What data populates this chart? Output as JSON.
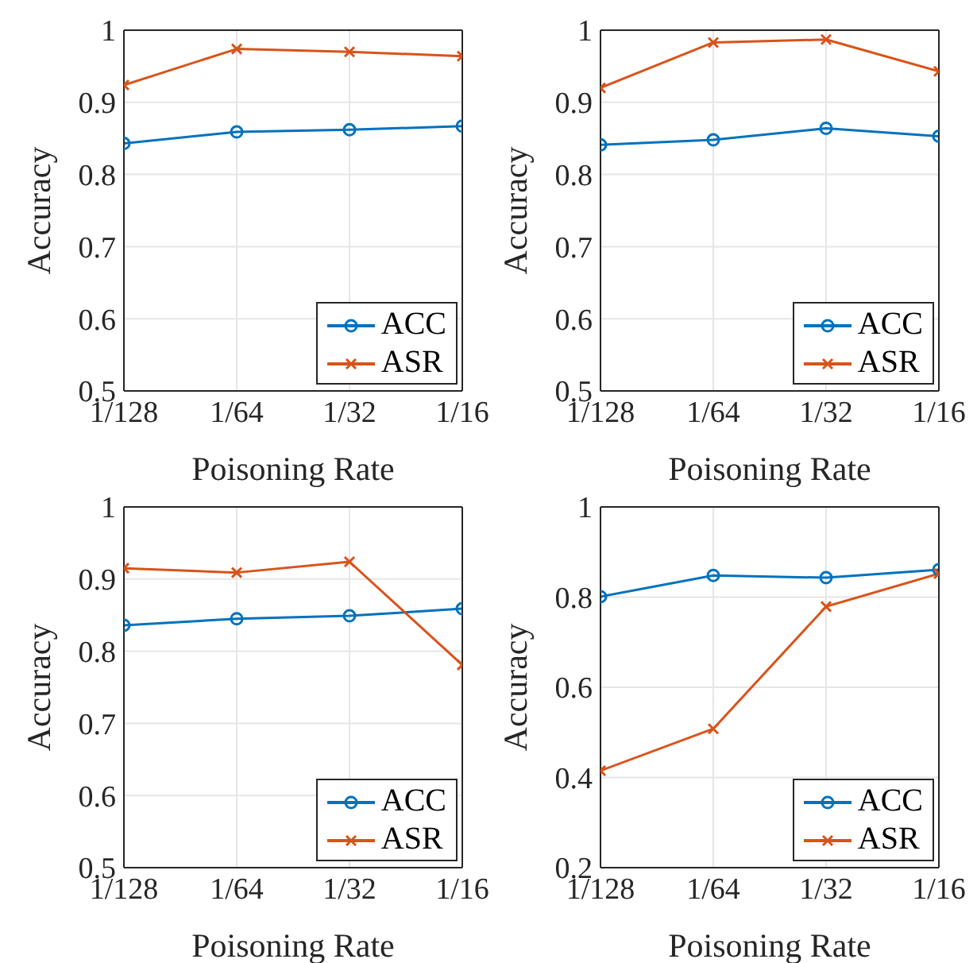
{
  "chart_data": [
    {
      "type": "line",
      "xlabel": "Poisoning Rate",
      "ylabel": "Accuracy",
      "categories": [
        "1/128",
        "1/64",
        "1/32",
        "1/16"
      ],
      "ylim": [
        0.5,
        1
      ],
      "yticks": [
        0.5,
        0.6,
        0.7,
        0.8,
        0.9,
        1
      ],
      "grid": true,
      "legend": "bottom right",
      "line_style": "solid",
      "series": [
        {
          "name": "ACC",
          "color": "#0072bd",
          "marker": "circle",
          "values": [
            0.843,
            0.859,
            0.862,
            0.867
          ]
        },
        {
          "name": "ASR",
          "color": "#d95319",
          "marker": "cross",
          "values": [
            0.924,
            0.974,
            0.97,
            0.964
          ]
        }
      ]
    },
    {
      "type": "line",
      "xlabel": "Poisoning Rate",
      "ylabel": "Accuracy",
      "categories": [
        "1/128",
        "1/64",
        "1/32",
        "1/16"
      ],
      "ylim": [
        0.5,
        1
      ],
      "yticks": [
        0.5,
        0.6,
        0.7,
        0.8,
        0.9,
        1
      ],
      "grid": true,
      "legend": "bottom right",
      "line_style": "solid",
      "series": [
        {
          "name": "ACC",
          "color": "#0072bd",
          "marker": "circle",
          "values": [
            0.841,
            0.848,
            0.864,
            0.853
          ]
        },
        {
          "name": "ASR",
          "color": "#d95319",
          "marker": "cross",
          "values": [
            0.92,
            0.983,
            0.987,
            0.943
          ]
        }
      ]
    },
    {
      "type": "line",
      "xlabel": "Poisoning Rate",
      "ylabel": "Accuracy",
      "categories": [
        "1/128",
        "1/64",
        "1/32",
        "1/16"
      ],
      "ylim": [
        0.5,
        1
      ],
      "yticks": [
        0.5,
        0.6,
        0.7,
        0.8,
        0.9,
        1
      ],
      "grid": true,
      "legend": "bottom right",
      "line_style": "solid",
      "series": [
        {
          "name": "ACC",
          "color": "#0072bd",
          "marker": "circle",
          "values": [
            0.836,
            0.845,
            0.849,
            0.859
          ]
        },
        {
          "name": "ASR",
          "color": "#d95319",
          "marker": "cross",
          "values": [
            0.915,
            0.909,
            0.924,
            0.781
          ]
        }
      ]
    },
    {
      "type": "line",
      "xlabel": "Poisoning Rate",
      "ylabel": "Accuracy",
      "categories": [
        "1/128",
        "1/64",
        "1/32",
        "1/16"
      ],
      "ylim": [
        0.2,
        1
      ],
      "yticks": [
        0.2,
        0.4,
        0.6,
        0.8,
        1
      ],
      "grid": true,
      "legend": "bottom right",
      "line_style": "solid",
      "series": [
        {
          "name": "ACC",
          "color": "#0072bd",
          "marker": "circle",
          "values": [
            0.801,
            0.848,
            0.843,
            0.861
          ]
        },
        {
          "name": "ASR",
          "color": "#d95319",
          "marker": "cross",
          "values": [
            0.415,
            0.508,
            0.779,
            0.852
          ]
        }
      ]
    }
  ]
}
